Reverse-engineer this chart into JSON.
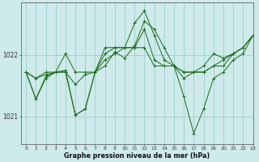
{
  "title": "Graphe pression niveau de la mer (hPa)",
  "bg_color": "#ceeaea",
  "grid_color": "#9ecece",
  "line_color": "#1a6b1a",
  "xlim": [
    -0.5,
    23
  ],
  "ylim": [
    1020.55,
    1022.85
  ],
  "yticks": [
    1021,
    1022
  ],
  "xticks": [
    0,
    1,
    2,
    3,
    4,
    5,
    6,
    7,
    8,
    9,
    10,
    11,
    12,
    13,
    14,
    15,
    16,
    17,
    18,
    19,
    20,
    21,
    22,
    23
  ],
  "series": [
    [
      1021.72,
      1021.28,
      1021.65,
      1021.72,
      1021.75,
      1021.02,
      1021.12,
      1021.72,
      1021.82,
      1022.05,
      1021.95,
      1022.15,
      1022.55,
      1022.42,
      1022.12,
      1021.82,
      1021.62,
      1021.72,
      1021.82,
      1022.02,
      1021.95,
      1022.02,
      1022.12,
      1022.32
    ],
    [
      1021.72,
      1021.62,
      1021.68,
      1021.72,
      1021.72,
      1021.52,
      1021.68,
      1021.72,
      1021.92,
      1022.02,
      1022.12,
      1022.12,
      1022.42,
      1021.92,
      1021.82,
      1021.82,
      1021.72,
      1021.72,
      1021.72,
      1021.82,
      1021.92,
      1022.02,
      1022.12,
      1022.32
    ],
    [
      1021.72,
      1021.28,
      1021.62,
      1021.72,
      1021.72,
      1021.02,
      1021.12,
      1021.72,
      1022.02,
      1022.12,
      1022.12,
      1022.52,
      1022.72,
      1022.32,
      1021.92,
      1021.82,
      1021.32,
      1020.72,
      1021.12,
      1021.62,
      1021.72,
      1021.92,
      1022.02,
      1022.32
    ],
    [
      1021.72,
      1021.62,
      1021.72,
      1021.72,
      1022.02,
      1021.72,
      1021.72,
      1021.72,
      1022.12,
      1022.12,
      1022.12,
      1022.12,
      1022.12,
      1021.82,
      1021.82,
      1021.82,
      1021.72,
      1021.72,
      1021.72,
      1021.82,
      1021.82,
      1022.02,
      1022.12,
      1022.32
    ]
  ]
}
